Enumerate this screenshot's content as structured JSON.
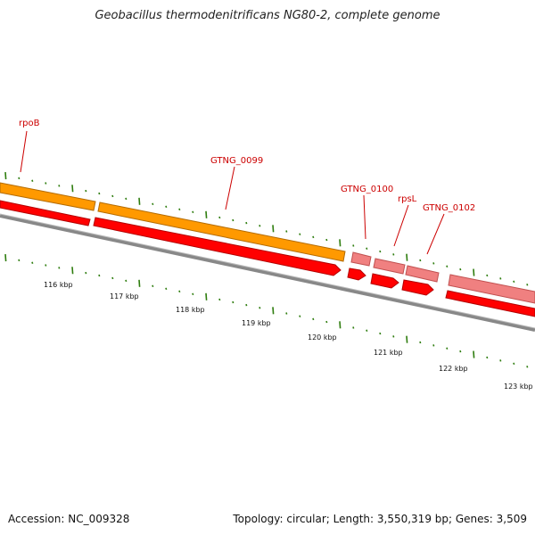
{
  "title": "Geobacillus thermodenitrificans NG80-2, complete genome",
  "footer": {
    "accession": "Accession: NC_009328",
    "summary": "Topology: circular; Length: 3,550,319 bp; Genes: 3,509"
  },
  "colors": {
    "orange_gene": "#ff9900",
    "orange_gene_edge": "#b36b00",
    "red_gene": "#ff0000",
    "red_gene_edge": "#b30000",
    "pink_gene": "#f08080",
    "pink_gene_edge": "#c05050",
    "backbone": "#808080",
    "ticks": "#2e7d0e",
    "label": "#cc0000"
  },
  "gene_labels": [
    "rpoB",
    "GTNG_0099",
    "GTNG_0100",
    "rpsL",
    "GTNG_0102"
  ],
  "scale_labels": [
    "116 kbp",
    "117 kbp",
    "118 kbp",
    "119 kbp",
    "120 kbp",
    "121 kbp",
    "122 kbp",
    "123 kbp"
  ]
}
